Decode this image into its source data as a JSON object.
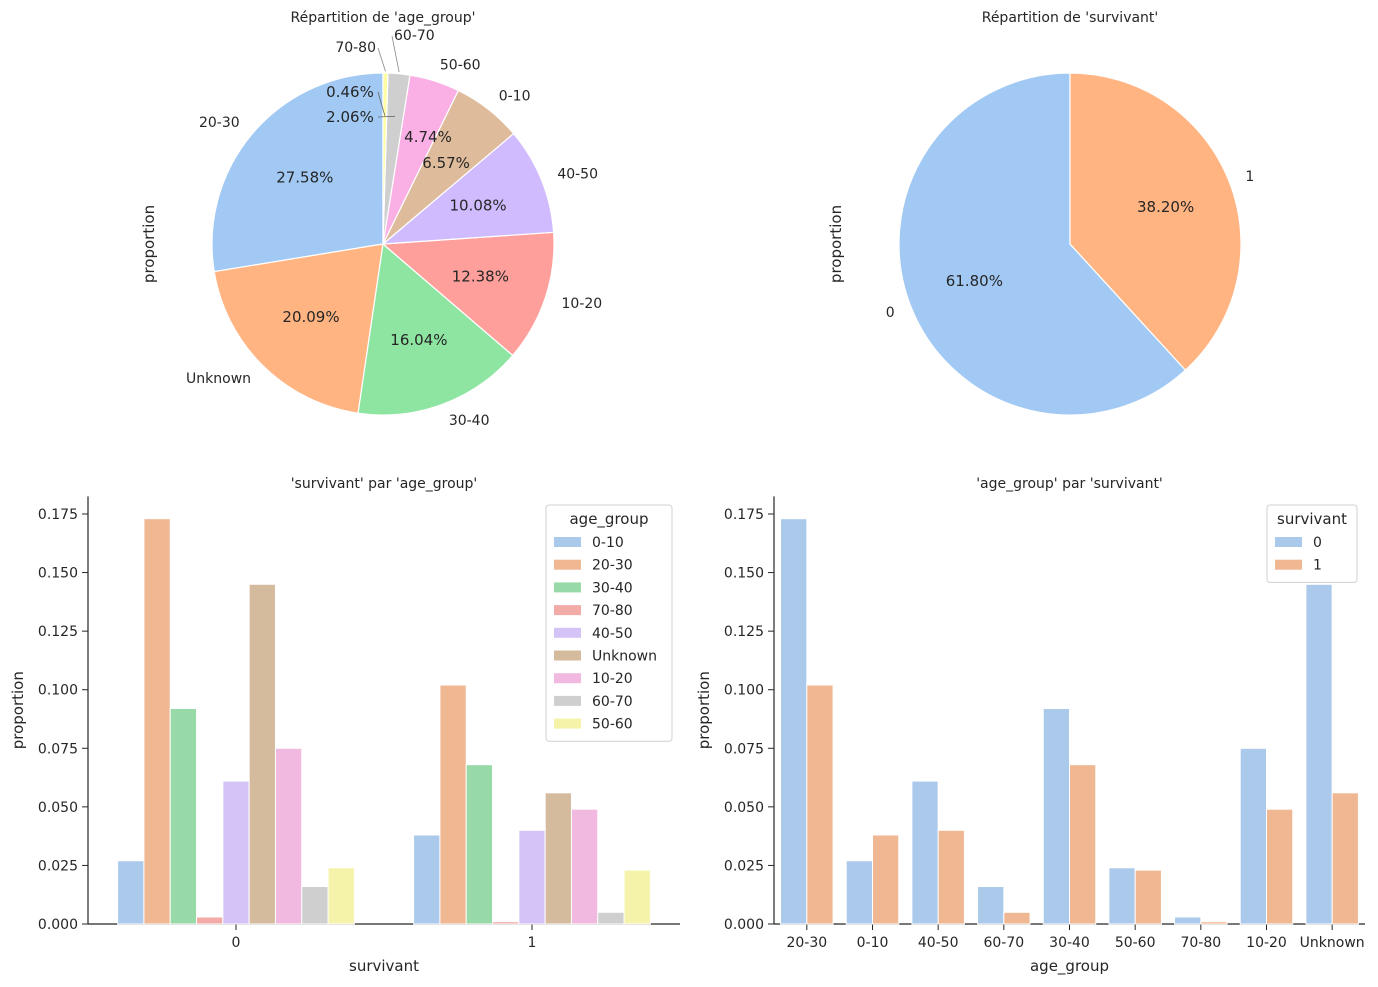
{
  "chart_data": [
    {
      "type": "pie",
      "title": "Répartition de 'age_group'",
      "ylabel": "proportion",
      "labels": [
        "20-30",
        "Unknown",
        "30-40",
        "10-20",
        "40-50",
        "0-10",
        "50-60",
        "60-70",
        "70-80"
      ],
      "values": [
        27.58,
        20.09,
        16.04,
        12.38,
        10.08,
        6.57,
        4.74,
        2.06,
        0.46
      ],
      "pct_labels": [
        "27.58%",
        "20.09%",
        "16.04%",
        "12.38%",
        "10.08%",
        "6.57%",
        "4.74%",
        "2.06%",
        "0.46%"
      ],
      "colors": [
        "#a1c9f4",
        "#ffb482",
        "#8de5a1",
        "#ff9f9b",
        "#d0bbff",
        "#debb9b",
        "#fab0e4",
        "#cfcfcf",
        "#fffea3"
      ]
    },
    {
      "type": "pie",
      "title": "Répartition de 'survivant'",
      "ylabel": "proportion",
      "labels": [
        "0",
        "1"
      ],
      "values": [
        61.8,
        38.2
      ],
      "pct_labels": [
        "61.80%",
        "38.20%"
      ],
      "colors": [
        "#a1c9f4",
        "#ffb482"
      ]
    },
    {
      "type": "bar",
      "title": "'survivant' par 'age_group'",
      "xlabel": "survivant",
      "ylabel": "proportion",
      "categories": [
        "0",
        "1"
      ],
      "ylim": [
        0,
        0.1825
      ],
      "yticks": [
        "0.000",
        "0.025",
        "0.050",
        "0.075",
        "0.100",
        "0.125",
        "0.150",
        "0.175"
      ],
      "legend_title": "age_group",
      "legend_placement": "upper right",
      "series": [
        {
          "name": "0-10",
          "values": [
            0.027,
            0.038
          ],
          "color": "#abc9ea"
        },
        {
          "name": "20-30",
          "values": [
            0.173,
            0.102
          ],
          "color": "#efb792"
        },
        {
          "name": "30-40",
          "values": [
            0.092,
            0.068
          ],
          "color": "#98daa7"
        },
        {
          "name": "70-80",
          "values": [
            0.003,
            0.001
          ],
          "color": "#f3aba8"
        },
        {
          "name": "40-50",
          "values": [
            0.061,
            0.04
          ],
          "color": "#d3c3f7"
        },
        {
          "name": "Unknown",
          "values": [
            0.145,
            0.056
          ],
          "color": "#d5bb9e"
        },
        {
          "name": "10-20",
          "values": [
            0.075,
            0.049
          ],
          "color": "#f1b9e0"
        },
        {
          "name": "60-70",
          "values": [
            0.016,
            0.005
          ],
          "color": "#cfcfcf"
        },
        {
          "name": "50-60",
          "values": [
            0.024,
            0.023
          ],
          "color": "#f4f3a9"
        }
      ]
    },
    {
      "type": "bar",
      "title": "'age_group' par 'survivant'",
      "xlabel": "age_group",
      "ylabel": "proportion",
      "categories": [
        "20-30",
        "0-10",
        "40-50",
        "60-70",
        "30-40",
        "50-60",
        "70-80",
        "10-20",
        "Unknown"
      ],
      "ylim": [
        0,
        0.1825
      ],
      "yticks": [
        "0.000",
        "0.025",
        "0.050",
        "0.075",
        "0.100",
        "0.125",
        "0.150",
        "0.175"
      ],
      "legend_title": "survivant",
      "legend_placement": "upper right",
      "series": [
        {
          "name": "0",
          "values": [
            0.173,
            0.027,
            0.061,
            0.016,
            0.092,
            0.024,
            0.003,
            0.075,
            0.145
          ],
          "color": "#abc9ea"
        },
        {
          "name": "1",
          "values": [
            0.102,
            0.038,
            0.04,
            0.005,
            0.068,
            0.023,
            0.001,
            0.049,
            0.056
          ],
          "color": "#efb792"
        }
      ]
    }
  ]
}
